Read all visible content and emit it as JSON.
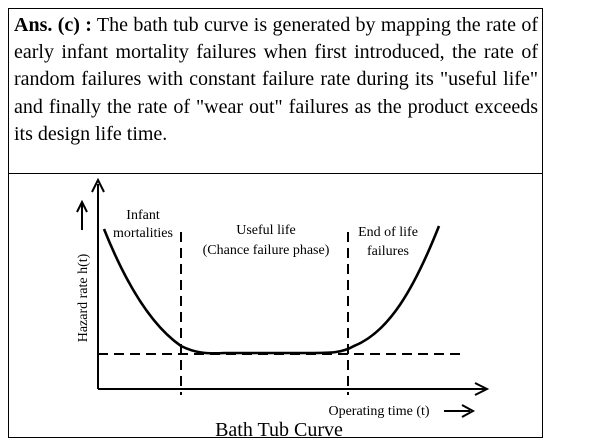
{
  "answer": {
    "lead": "Ans. (c) :",
    "body": " The bath tub curve is generated by mapping the rate of early infant mortality failures when first introduced, the rate of random failures with constant failure rate during its \"useful life\" and finally the rate of \"wear out\" failures as the product exceeds its design life time."
  },
  "diagram": {
    "title": "Bath Tub Curve",
    "y_axis_label": "Hazard rate h(t)",
    "x_axis_label": "Operating time (t)",
    "regions": {
      "infant_line1": "Infant",
      "infant_line2": "mortalities",
      "useful_line1": "Useful life",
      "useful_line2": "(Chance failure phase)",
      "end_line1": "End of life",
      "end_line2": "failures"
    },
    "colors": {
      "line": "#000000",
      "background": "#ffffff",
      "border": "#000000"
    },
    "icons": {
      "y_arrow": "up-arrow-icon",
      "x_arrow": "right-arrow-icon"
    }
  }
}
